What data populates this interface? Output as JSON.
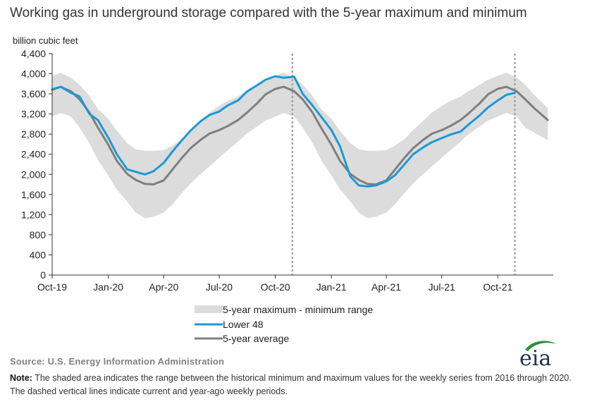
{
  "page": {
    "title": "Working gas in underground  storage compared with the 5-year maximum and minimum",
    "source": "Source:  U.S. Energy Information Administration",
    "note_label": "Note:",
    "note_text": " The shaded area indicates the range between the historical minimum and maximum values for the weekly series from 2016 through 2020. The dashed vertical lines indicate current and year-ago weekly periods.",
    "logo_text": "eia"
  },
  "colors": {
    "band": "#dcdcdc",
    "lower48": "#1a9ad6",
    "average": "#7f7f7f",
    "axis": "#333333",
    "dashed": "#a6a6a6",
    "logo_swoosh": "#2d8f3c"
  },
  "chart_data": {
    "type": "line",
    "title": "Working gas in underground  storage compared with the 5-year maximum and minimum",
    "ylabel": "billion cubic feet",
    "xlabel": "",
    "ylim": [
      0,
      4400
    ],
    "yticks": [
      0,
      400,
      800,
      1200,
      1600,
      2000,
      2400,
      2800,
      3200,
      3600,
      4000,
      4400
    ],
    "ytick_labels": [
      "0",
      "400",
      "800",
      "1,200",
      "1,600",
      "2,000",
      "2,400",
      "2,800",
      "3,200",
      "3,600",
      "4,000",
      "4,400"
    ],
    "xlim": [
      "2019-10-01",
      "2021-12-31"
    ],
    "xticks": [
      "2019-10-01",
      "2020-01-01",
      "2020-04-01",
      "2020-07-01",
      "2020-10-01",
      "2021-01-01",
      "2021-04-01",
      "2021-07-01",
      "2021-10-01"
    ],
    "xtick_labels": [
      "Oct-19",
      "Jan-20",
      "Apr-20",
      "Jul-20",
      "Oct-20",
      "Jan-21",
      "Apr-21",
      "Jul-21",
      "Oct-21"
    ],
    "grid": false,
    "legend_position": "bottom",
    "legend": [
      "5-year maximum - minimum range",
      "Lower 48",
      "5-year average"
    ],
    "dashed_lines": [
      "2020-10-29",
      "2021-10-29"
    ],
    "band": {
      "name": "5-year maximum - minimum range",
      "x": [
        "2019-10-01",
        "2019-10-15",
        "2019-11-01",
        "2019-11-15",
        "2019-12-01",
        "2019-12-15",
        "2020-01-01",
        "2020-01-15",
        "2020-02-01",
        "2020-02-15",
        "2020-03-01",
        "2020-03-15",
        "2020-04-01",
        "2020-04-15",
        "2020-05-01",
        "2020-05-15",
        "2020-06-01",
        "2020-06-15",
        "2020-07-01",
        "2020-07-15",
        "2020-08-01",
        "2020-08-15",
        "2020-09-01",
        "2020-09-15",
        "2020-10-01",
        "2020-10-15",
        "2020-11-01",
        "2020-11-15",
        "2020-12-01",
        "2020-12-15",
        "2021-01-01",
        "2021-01-15",
        "2021-02-01",
        "2021-02-15",
        "2021-03-01",
        "2021-03-15",
        "2021-04-01",
        "2021-04-15",
        "2021-05-01",
        "2021-05-15",
        "2021-06-01",
        "2021-06-15",
        "2021-07-01",
        "2021-07-15",
        "2021-08-01",
        "2021-08-15",
        "2021-09-01",
        "2021-09-15",
        "2021-10-01",
        "2021-10-15",
        "2021-11-01",
        "2021-11-15",
        "2021-12-01",
        "2021-12-22"
      ],
      "max": [
        3960,
        4020,
        3920,
        3780,
        3560,
        3300,
        3100,
        2870,
        2620,
        2500,
        2470,
        2470,
        2480,
        2570,
        2700,
        2880,
        3070,
        3230,
        3360,
        3460,
        3550,
        3660,
        3780,
        3880,
        3960,
        4020,
        3920,
        3780,
        3560,
        3300,
        3100,
        2870,
        2620,
        2500,
        2470,
        2470,
        2480,
        2570,
        2700,
        2880,
        3070,
        3230,
        3360,
        3460,
        3550,
        3660,
        3780,
        3880,
        3960,
        4020,
        3920,
        3780,
        3560,
        3320
      ],
      "min": [
        3150,
        3220,
        3150,
        2930,
        2620,
        2290,
        1980,
        1700,
        1460,
        1240,
        1130,
        1160,
        1240,
        1400,
        1630,
        1820,
        2010,
        2160,
        2330,
        2480,
        2650,
        2810,
        2950,
        3070,
        3150,
        3220,
        3150,
        2930,
        2620,
        2290,
        1980,
        1700,
        1460,
        1240,
        1130,
        1160,
        1240,
        1400,
        1630,
        1820,
        2010,
        2160,
        2330,
        2480,
        2650,
        2810,
        2950,
        3070,
        3150,
        3220,
        3150,
        2930,
        2820,
        2680
      ]
    },
    "series": [
      {
        "name": "Lower 48",
        "x": [
          "2019-10-01",
          "2019-10-15",
          "2019-11-01",
          "2019-11-15",
          "2019-12-01",
          "2019-12-15",
          "2020-01-01",
          "2020-01-15",
          "2020-02-01",
          "2020-02-15",
          "2020-03-01",
          "2020-03-15",
          "2020-04-01",
          "2020-04-15",
          "2020-05-01",
          "2020-05-15",
          "2020-06-01",
          "2020-06-15",
          "2020-07-01",
          "2020-07-15",
          "2020-08-01",
          "2020-08-15",
          "2020-09-01",
          "2020-09-15",
          "2020-10-01",
          "2020-10-15",
          "2020-11-01",
          "2020-11-15",
          "2020-12-01",
          "2020-12-15",
          "2021-01-01",
          "2021-01-15",
          "2021-02-01",
          "2021-02-15",
          "2021-03-01",
          "2021-03-15",
          "2021-04-01",
          "2021-04-15",
          "2021-05-01",
          "2021-05-15",
          "2021-06-01",
          "2021-06-15",
          "2021-07-01",
          "2021-07-15",
          "2021-08-01",
          "2021-08-15",
          "2021-09-01",
          "2021-09-15",
          "2021-10-01",
          "2021-10-15",
          "2021-10-29"
        ],
        "values": [
          3690,
          3740,
          3620,
          3550,
          3200,
          3080,
          2730,
          2400,
          2100,
          2050,
          2000,
          2060,
          2230,
          2450,
          2680,
          2870,
          3060,
          3180,
          3250,
          3370,
          3470,
          3640,
          3770,
          3880,
          3950,
          3920,
          3940,
          3600,
          3370,
          3150,
          2880,
          2560,
          1960,
          1780,
          1760,
          1780,
          1860,
          1980,
          2200,
          2400,
          2540,
          2640,
          2720,
          2790,
          2850,
          3000,
          3170,
          3330,
          3470,
          3580,
          3620
        ]
      },
      {
        "name": "5-year average",
        "x": [
          "2019-10-01",
          "2019-10-15",
          "2019-11-01",
          "2019-11-15",
          "2019-12-01",
          "2019-12-15",
          "2020-01-01",
          "2020-01-15",
          "2020-02-01",
          "2020-02-15",
          "2020-03-01",
          "2020-03-15",
          "2020-04-01",
          "2020-04-15",
          "2020-05-01",
          "2020-05-15",
          "2020-06-01",
          "2020-06-15",
          "2020-07-01",
          "2020-07-15",
          "2020-08-01",
          "2020-08-15",
          "2020-09-01",
          "2020-09-15",
          "2020-10-01",
          "2020-10-15",
          "2020-11-01",
          "2020-11-15",
          "2020-12-01",
          "2020-12-15",
          "2021-01-01",
          "2021-01-15",
          "2021-02-01",
          "2021-02-15",
          "2021-03-01",
          "2021-03-15",
          "2021-04-01",
          "2021-04-15",
          "2021-05-01",
          "2021-05-15",
          "2021-06-01",
          "2021-06-15",
          "2021-07-01",
          "2021-07-15",
          "2021-08-01",
          "2021-08-15",
          "2021-09-01",
          "2021-09-15",
          "2021-10-01",
          "2021-10-15",
          "2021-11-01",
          "2021-11-15",
          "2021-12-01",
          "2021-12-22"
        ],
        "values": [
          3680,
          3740,
          3650,
          3490,
          3230,
          2930,
          2590,
          2270,
          2010,
          1890,
          1810,
          1800,
          1880,
          2090,
          2330,
          2520,
          2690,
          2810,
          2880,
          2960,
          3080,
          3220,
          3410,
          3590,
          3700,
          3740,
          3650,
          3490,
          3230,
          2930,
          2590,
          2270,
          2010,
          1890,
          1810,
          1800,
          1880,
          2090,
          2330,
          2520,
          2690,
          2810,
          2880,
          2960,
          3080,
          3220,
          3410,
          3590,
          3700,
          3740,
          3650,
          3490,
          3300,
          3080
        ]
      }
    ]
  }
}
